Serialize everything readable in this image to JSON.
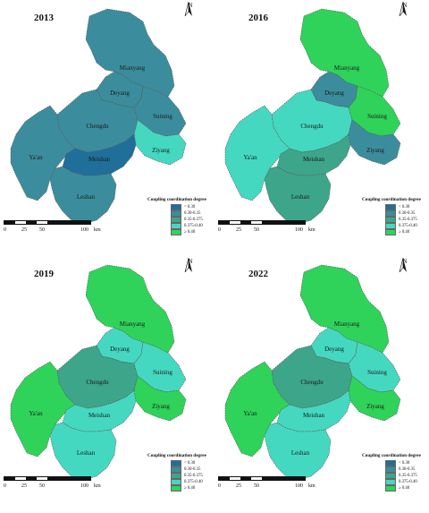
{
  "legend": {
    "title": "Coupling coordination degree",
    "classes": [
      {
        "label": "< 0.30",
        "color": "#1f6f9a"
      },
      {
        "label": "0.30-0.35",
        "color": "#3b8d9d"
      },
      {
        "label": "0.35-0.375",
        "color": "#3da58a"
      },
      {
        "label": "0.375-0.40",
        "color": "#45d8c0"
      },
      {
        "label": "≥ 0.40",
        "color": "#2fd35a"
      }
    ]
  },
  "scale": {
    "ticks": [
      "0",
      "25",
      "50",
      "100"
    ],
    "unit": "km"
  },
  "north_label": "N",
  "cities": [
    "Mianyang",
    "Deyang",
    "Chengdu",
    "Suining",
    "Ziyang",
    "Ya'an",
    "Meishan",
    "Leshan"
  ],
  "maps": [
    {
      "year": "2013",
      "classes": {
        "Mianyang": 1,
        "Deyang": 1,
        "Chengdu": 1,
        "Suining": 1,
        "Ziyang": 3,
        "Ya'an": 1,
        "Meishan": 0,
        "Leshan": 1
      }
    },
    {
      "year": "2016",
      "classes": {
        "Mianyang": 4,
        "Deyang": 1,
        "Chengdu": 3,
        "Suining": 4,
        "Ziyang": 1,
        "Ya'an": 3,
        "Meishan": 2,
        "Leshan": 2
      }
    },
    {
      "year": "2019",
      "classes": {
        "Mianyang": 4,
        "Deyang": 3,
        "Chengdu": 2,
        "Suining": 3,
        "Ziyang": 4,
        "Ya'an": 4,
        "Meishan": 3,
        "Leshan": 3
      }
    },
    {
      "year": "2022",
      "classes": {
        "Mianyang": 4,
        "Deyang": 3,
        "Chengdu": 2,
        "Suining": 3,
        "Ziyang": 4,
        "Ya'an": 4,
        "Meishan": 3,
        "Leshan": 3
      }
    }
  ]
}
